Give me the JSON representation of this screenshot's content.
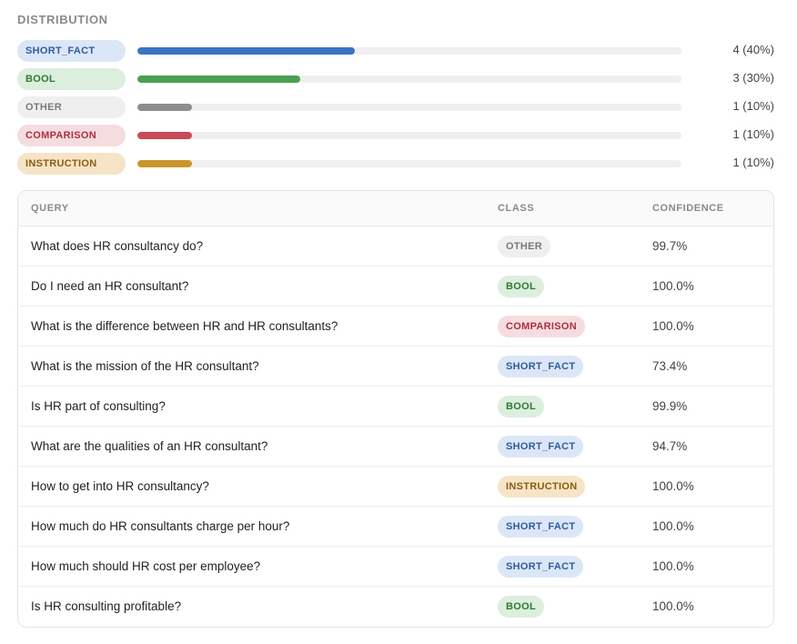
{
  "distribution": {
    "title": "DISTRIBUTION",
    "items": [
      {
        "label": "SHORT_FACT",
        "count_text": "4 (40%)",
        "fraction": 0.4,
        "pill_bg": "#dbe6f6",
        "pill_fg": "#2f5d9e",
        "bar_color": "#3b74c1"
      },
      {
        "label": "BOOL",
        "count_text": "3 (30%)",
        "fraction": 0.3,
        "pill_bg": "#dceedd",
        "pill_fg": "#2e7a34",
        "bar_color": "#4a9f53"
      },
      {
        "label": "OTHER",
        "count_text": "1 (10%)",
        "fraction": 0.1,
        "pill_bg": "#efefef",
        "pill_fg": "#7a7a7a",
        "bar_color": "#8e8e8e"
      },
      {
        "label": "COMPARISON",
        "count_text": "1 (10%)",
        "fraction": 0.1,
        "pill_bg": "#f5dcdf",
        "pill_fg": "#a8323f",
        "bar_color": "#c84a57"
      },
      {
        "label": "INSTRUCTION",
        "count_text": "1 (10%)",
        "fraction": 0.1,
        "pill_bg": "#f5e5c6",
        "pill_fg": "#8a5a10",
        "bar_color": "#c9952c"
      }
    ]
  },
  "table": {
    "headers": {
      "query": "QUERY",
      "class": "CLASS",
      "confidence": "CONFIDENCE"
    },
    "rows": [
      {
        "query": "What does HR consultancy do?",
        "class": "OTHER",
        "confidence": "99.7%"
      },
      {
        "query": "Do I need an HR consultant?",
        "class": "BOOL",
        "confidence": "100.0%"
      },
      {
        "query": "What is the difference between HR and HR consultants?",
        "class": "COMPARISON",
        "confidence": "100.0%"
      },
      {
        "query": "What is the mission of the HR consultant?",
        "class": "SHORT_FACT",
        "confidence": "73.4%"
      },
      {
        "query": "Is HR part of consulting?",
        "class": "BOOL",
        "confidence": "99.9%"
      },
      {
        "query": "What are the qualities of an HR consultant?",
        "class": "SHORT_FACT",
        "confidence": "94.7%"
      },
      {
        "query": "How to get into HR consultancy?",
        "class": "INSTRUCTION",
        "confidence": "100.0%"
      },
      {
        "query": "How much do HR consultants charge per hour?",
        "class": "SHORT_FACT",
        "confidence": "100.0%"
      },
      {
        "query": "How much should HR cost per employee?",
        "class": "SHORT_FACT",
        "confidence": "100.0%"
      },
      {
        "query": "Is HR consulting profitable?",
        "class": "BOOL",
        "confidence": "100.0%"
      }
    ]
  }
}
